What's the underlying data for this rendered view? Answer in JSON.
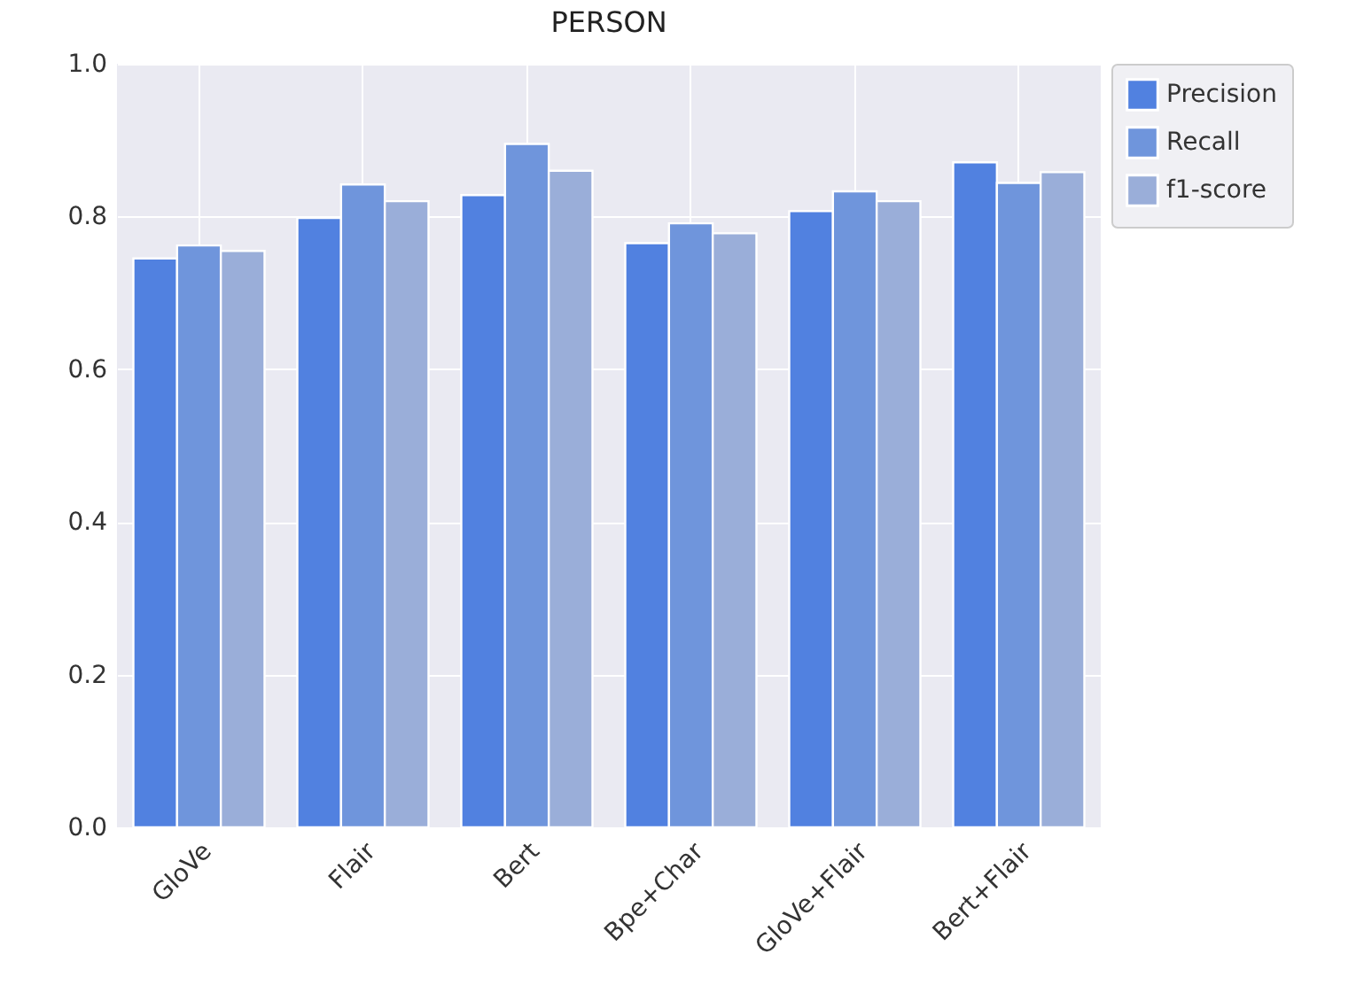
{
  "chart_data": {
    "type": "bar",
    "title": "PERSON",
    "categories": [
      "GloVe",
      "Flair",
      "Bert",
      "Bpe+Char",
      "GloVe+Flair",
      "Bert+Flair"
    ],
    "series": [
      {
        "name": "Precision",
        "color": "#5181e0",
        "values": [
          0.745,
          0.798,
          0.828,
          0.765,
          0.807,
          0.871
        ]
      },
      {
        "name": "Recall",
        "color": "#6f95dc",
        "values": [
          0.762,
          0.842,
          0.895,
          0.791,
          0.833,
          0.844
        ]
      },
      {
        "name": "f1-score",
        "color": "#9aaed9",
        "values": [
          0.755,
          0.82,
          0.86,
          0.778,
          0.82,
          0.858
        ]
      }
    ],
    "ylim": [
      0,
      1.0
    ],
    "yticks": [
      {
        "value": 0,
        "label": "0.0"
      },
      {
        "value": 0.2,
        "label": "0.2"
      },
      {
        "value": 0.4,
        "label": "0.4"
      },
      {
        "value": 0.6,
        "label": "0.6"
      },
      {
        "value": 0.8,
        "label": "0.8"
      },
      {
        "value": 1.0,
        "label": "1.0"
      }
    ],
    "grid": true,
    "legend": "top right"
  }
}
